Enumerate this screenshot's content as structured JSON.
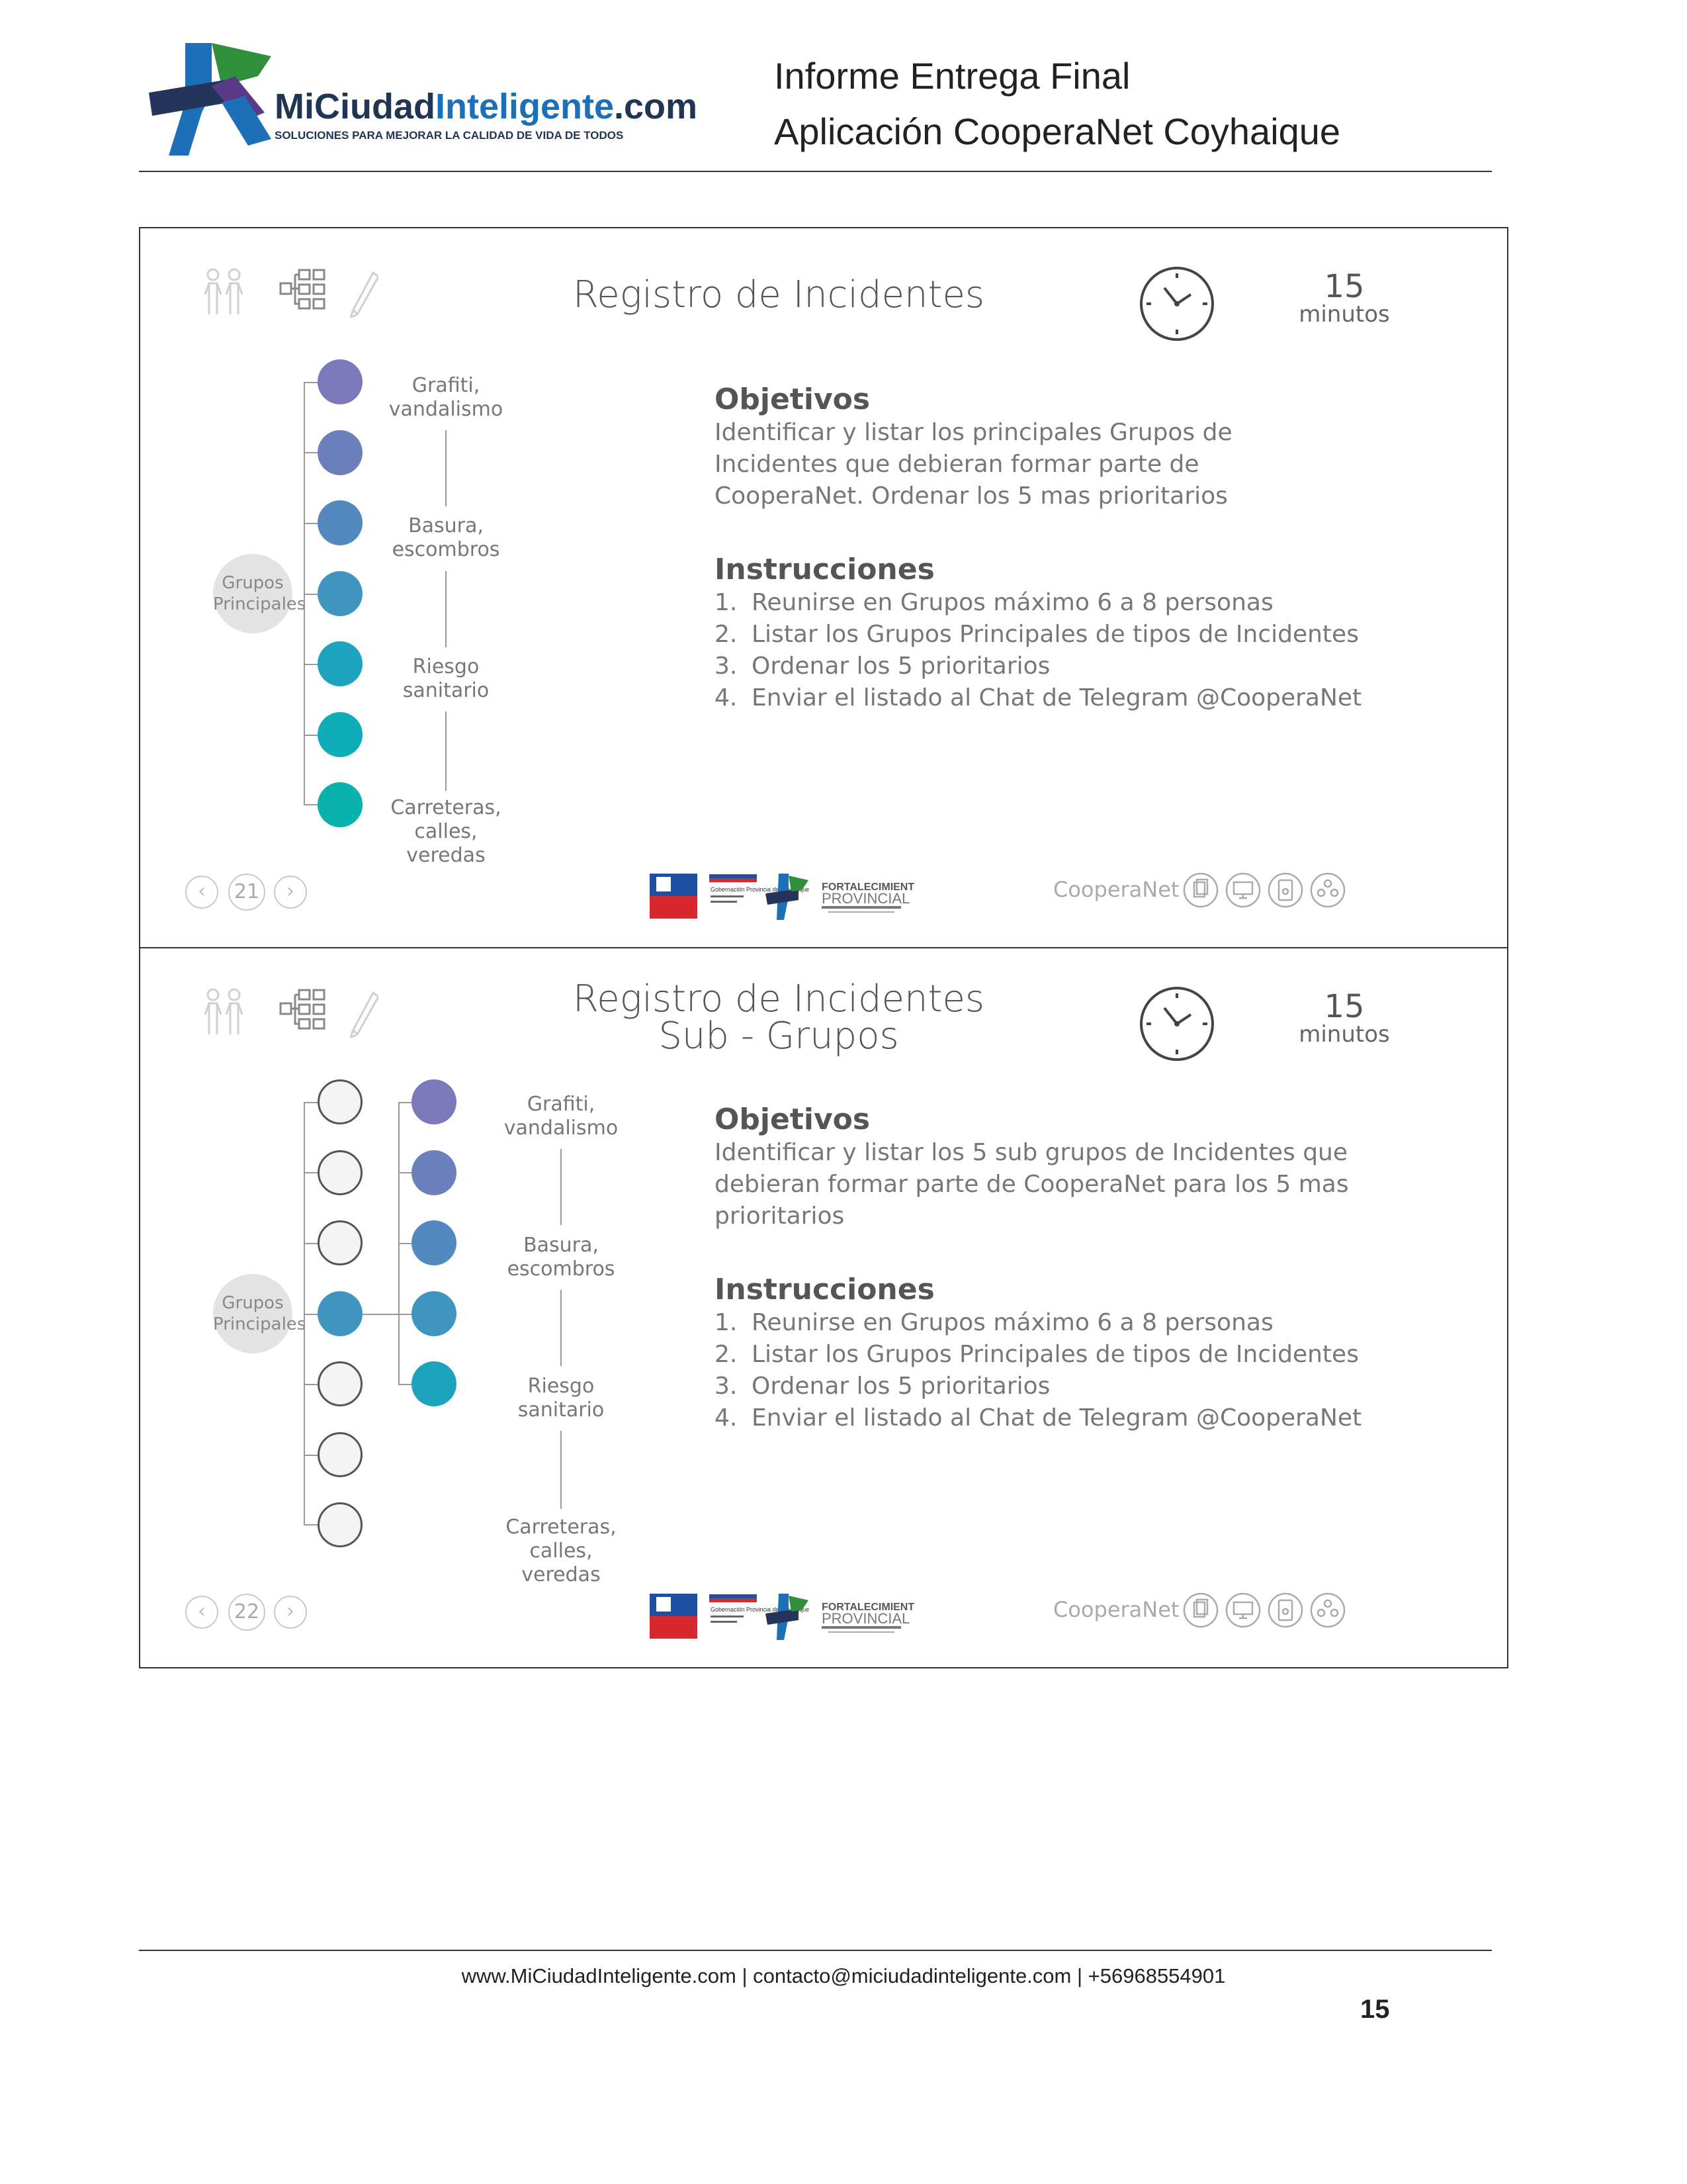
{
  "header": {
    "logo_text_part1": "MiCiudad",
    "logo_text_part2": "Inteligente",
    "logo_text_part3": ".com",
    "logo_tagline": "SOLUCIONES PARA MEJORAR LA CALIDAD DE VIDA DE TODOS",
    "title_line1": "Informe Entrega Final",
    "title_line2": "Aplicación CooperaNet Coyhaique"
  },
  "slides": [
    {
      "title_line1": "Registro de Incidentes",
      "title_line2": "",
      "timer_value": "15",
      "timer_unit": "minutos",
      "group_badge": "Grupos Principales",
      "categories": [
        "Grafiti, vandalismo",
        "Basura, escombros",
        "Riesgo sanitario",
        "Carreteras, calles, veredas"
      ],
      "objectives_heading": "Objetivos",
      "objectives_text": "Identificar y listar los principales Grupos de Incidentes que debieran formar parte de CooperaNet. Ordenar los 5 mas prioritarios",
      "instructions_heading": "Instrucciones",
      "instructions": [
        {
          "n": "1.",
          "text": "Reunirse en Grupos máximo 6 a 8 personas"
        },
        {
          "n": "2.",
          "text": "Listar los Grupos Principales de tipos de Incidentes"
        },
        {
          "n": "3.",
          "text": "Ordenar los 5 prioritarios"
        },
        {
          "n": "4.",
          "text": "Enviar el listado al Chat de Telegram @CooperaNet"
        }
      ],
      "page": "21",
      "brand": "CooperaNet"
    },
    {
      "title_line1": "Registro de Incidentes",
      "title_line2": "Sub - Grupos",
      "timer_value": "15",
      "timer_unit": "minutos",
      "group_badge": "Grupos Principales",
      "categories": [
        "Grafiti, vandalismo",
        "Basura, escombros",
        "Riesgo sanitario",
        "Carreteras, calles, veredas"
      ],
      "objectives_heading": "Objetivos",
      "objectives_text": "Identificar y listar los 5 sub grupos de Incidentes que debieran formar parte de CooperaNet para los 5 mas prioritarios",
      "instructions_heading": "Instrucciones",
      "instructions": [
        {
          "n": "1.",
          "text": "Reunirse en Grupos máximo 6 a 8 personas"
        },
        {
          "n": "2.",
          "text": "Listar los Grupos Principales de tipos de Incidentes"
        },
        {
          "n": "3.",
          "text": "Ordenar los 5 prioritarios"
        },
        {
          "n": "4.",
          "text": "Enviar el listado al Chat de Telegram @CooperaNet"
        }
      ],
      "page": "22",
      "brand": "CooperaNet"
    }
  ],
  "sponsors": {
    "label_1": "Gobernación Provincia de Coyhaique",
    "label_2": "FORTALECIMIENTO",
    "label_3": "PROVINCIAL"
  },
  "colors": {
    "circles": [
      "#7b79b9",
      "#6b80bb",
      "#5489bf",
      "#3f95c0",
      "#1ea3bd",
      "#0fadb5",
      "#0ab2ae"
    ]
  },
  "footer": {
    "contact": "www.MiCiudadInteligente.com | contacto@miciudadinteligente.com | +56968554901",
    "page_number": "15"
  }
}
